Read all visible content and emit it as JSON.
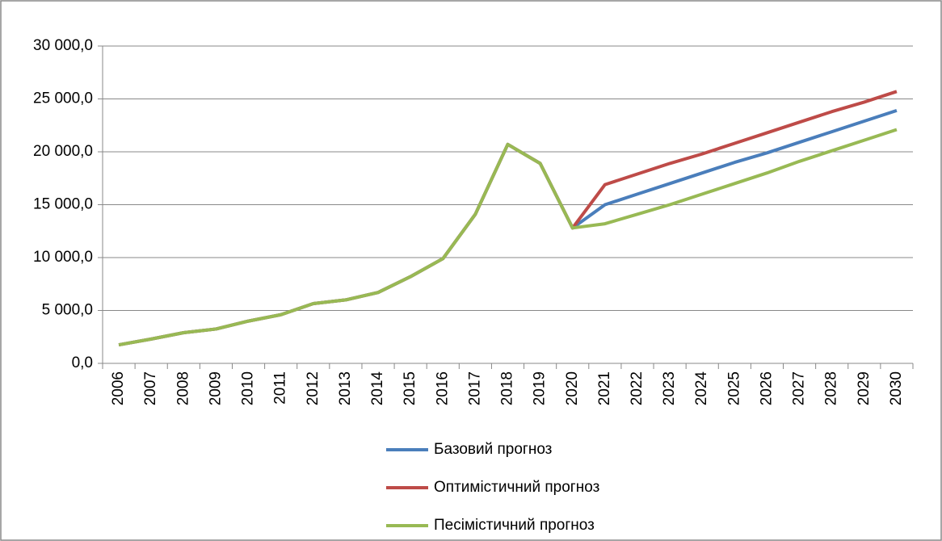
{
  "chart_data": {
    "type": "line",
    "categories": [
      "2006",
      "2007",
      "2008",
      "2009",
      "2010",
      "2011",
      "2012",
      "2013",
      "2014",
      "2015",
      "2016",
      "2017",
      "2018",
      "2019",
      "2020",
      "2021",
      "2022",
      "2023",
      "2024",
      "2025",
      "2026",
      "2027",
      "2028",
      "2029",
      "2030"
    ],
    "series": [
      {
        "name": "Базовий прогноз",
        "color": "#4a7ebb",
        "values": [
          1750,
          2300,
          2900,
          3250,
          4000,
          4600,
          5650,
          6000,
          6700,
          8200,
          9900,
          14100,
          20700,
          18900,
          12800,
          15000,
          16000,
          17000,
          18000,
          19000,
          19900,
          20900,
          21900,
          22900,
          23900
        ]
      },
      {
        "name": "Оптимістичний прогноз",
        "color": "#be4b48",
        "values": [
          1750,
          2300,
          2900,
          3250,
          4000,
          4600,
          5650,
          6000,
          6700,
          8200,
          9900,
          14100,
          20700,
          18900,
          12800,
          16900,
          17900,
          18900,
          19800,
          20800,
          21800,
          22800,
          23800,
          24700,
          25700
        ]
      },
      {
        "name": "Песімістичний прогноз",
        "color": "#98b954",
        "values": [
          1750,
          2300,
          2900,
          3250,
          4000,
          4600,
          5650,
          6000,
          6700,
          8200,
          9900,
          14100,
          20700,
          18900,
          12800,
          13200,
          14100,
          15000,
          16000,
          17000,
          18000,
          19100,
          20100,
          21100,
          22100
        ]
      }
    ],
    "ylim": [
      0,
      30000
    ],
    "yticks": [
      {
        "value": 0,
        "label": "0,0"
      },
      {
        "value": 5000,
        "label": "5 000,0"
      },
      {
        "value": 10000,
        "label": "10 000,0"
      },
      {
        "value": 15000,
        "label": "15 000,0"
      },
      {
        "value": 20000,
        "label": "20 000,0"
      },
      {
        "value": 25000,
        "label": "25 000,0"
      },
      {
        "value": 30000,
        "label": "30 000,0"
      }
    ],
    "grid": true
  }
}
